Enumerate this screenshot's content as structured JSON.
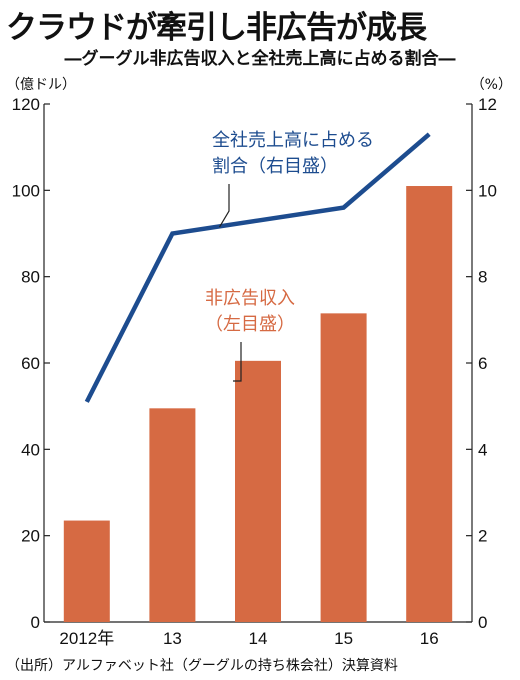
{
  "title": "クラウドが牽引し非広告が成長",
  "subtitle": "―グーグル非広告収入と全社売上高に占める割合―",
  "source": "（出所）アルファベット社（グーグルの持ち株会社）決算資料",
  "colors": {
    "bar": "#d66a43",
    "line": "#1d4c8f",
    "axis": "#222222"
  },
  "chart_data": {
    "type": "bar+line",
    "categories": [
      "2012年",
      "13",
      "14",
      "15",
      "16"
    ],
    "series": [
      {
        "name": "非広告収入（左目盛）",
        "type": "bar",
        "axis": "left",
        "values": [
          23.5,
          49.5,
          60.5,
          71.5,
          101
        ]
      },
      {
        "name": "全社売上高に占める割合（右目盛）",
        "type": "line",
        "axis": "right",
        "values": [
          5.1,
          9.0,
          9.3,
          9.6,
          11.3
        ]
      }
    ],
    "left_axis": {
      "unit": "（億ドル）",
      "ylim": [
        0,
        120
      ],
      "ticks": [
        "0",
        "20",
        "40",
        "60",
        "80",
        "100",
        "120"
      ]
    },
    "right_axis": {
      "unit": "（%）",
      "ylim": [
        0,
        12
      ],
      "ticks": [
        "0",
        "2",
        "4",
        "6",
        "8",
        "10",
        "12"
      ]
    },
    "annotations": {
      "line_label": [
        "全社売上高に占める",
        "割合（右目盛）"
      ],
      "bar_label": [
        "非広告収入",
        "（左目盛）"
      ]
    },
    "grid": false
  }
}
